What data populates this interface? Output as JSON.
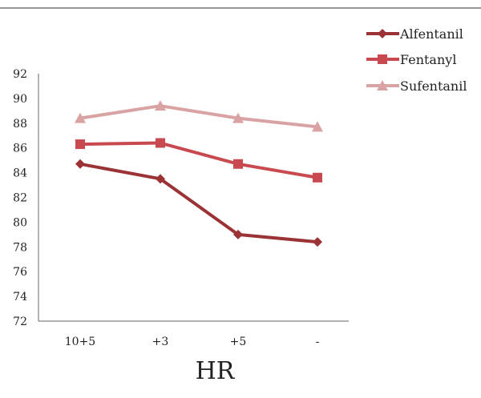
{
  "chart_data": {
    "type": "line",
    "title": "",
    "xlabel": "HR",
    "ylabel": "",
    "categories": [
      "10+5",
      "+3",
      "+5",
      "-"
    ],
    "ylim": [
      72,
      92
    ],
    "yticks": [
      72,
      74,
      76,
      78,
      80,
      82,
      84,
      86,
      88,
      90,
      92
    ],
    "grid": false,
    "legend_position": "top-right",
    "series": [
      {
        "name": "Alfentanil",
        "values": [
          84.7,
          83.5,
          79.0,
          78.4
        ],
        "color": "#9b3236",
        "marker": "diamond"
      },
      {
        "name": "Fentanyl",
        "values": [
          86.3,
          86.4,
          84.7,
          83.6
        ],
        "color": "#c8494f",
        "marker": "square"
      },
      {
        "name": "Sufentanil",
        "values": [
          88.4,
          89.4,
          88.4,
          87.7
        ],
        "color": "#d9a3a3",
        "marker": "triangle"
      }
    ]
  }
}
